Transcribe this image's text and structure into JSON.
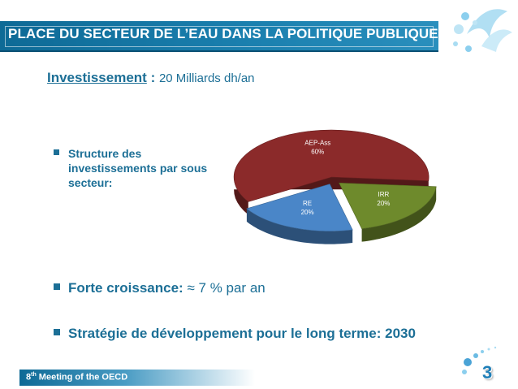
{
  "slide": {
    "title": "PLACE DU SECTEUR DE L’EAU DANS LA POLITIQUE PUBLIQUE",
    "investment_label": "Investissement",
    "investment_colon": " : ",
    "investment_value": "20 Milliards dh/an",
    "bullet_structure": "Structure des investissements par sous secteur:",
    "bullet_growth_bold": "Forte croissance:",
    "bullet_growth_rest": " ≈ 7 % par an",
    "bullet_strategy": "Stratégie de développement pour le long terme: 2030",
    "footer_ordinal": "8",
    "footer_suffix": "th",
    "footer_rest": " Meeting of the OECD",
    "page_number": "3",
    "colors": {
      "accent": "#1c6f96",
      "title_bar": "#0e6a96"
    },
    "icons": [
      "water-splash-icon",
      "water-drops-icon"
    ]
  },
  "chart_data": {
    "type": "pie",
    "three_d": true,
    "slices": [
      {
        "name": "AEP-Ass",
        "value": 60,
        "label": "60%",
        "color": "#8b2a2a"
      },
      {
        "name": "IRR",
        "value": 20,
        "label": "20%",
        "color": "#6e8a2c"
      },
      {
        "name": "RE",
        "value": 20,
        "label": "20%",
        "color": "#4a86c8"
      }
    ]
  }
}
